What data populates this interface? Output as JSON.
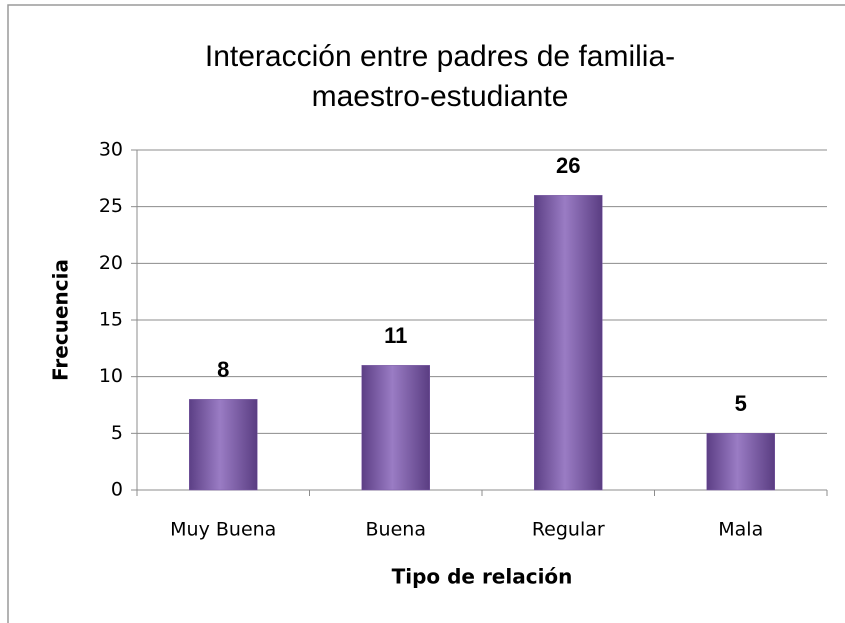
{
  "chart_data": {
    "type": "bar",
    "title": [
      "Interacción entre padres de familia-",
      "maestro-estudiante"
    ],
    "x_label": "Tipo de relación",
    "y_label": "Frecuencia",
    "categories": [
      "Muy Buena",
      "Buena",
      "Regular",
      "Mala"
    ],
    "values": [
      8,
      11,
      26,
      5
    ],
    "color": "#7b5ba6",
    "ylim": [
      0,
      30
    ],
    "yticks": [
      0,
      5,
      10,
      15,
      20,
      25,
      30
    ],
    "grid": true
  }
}
